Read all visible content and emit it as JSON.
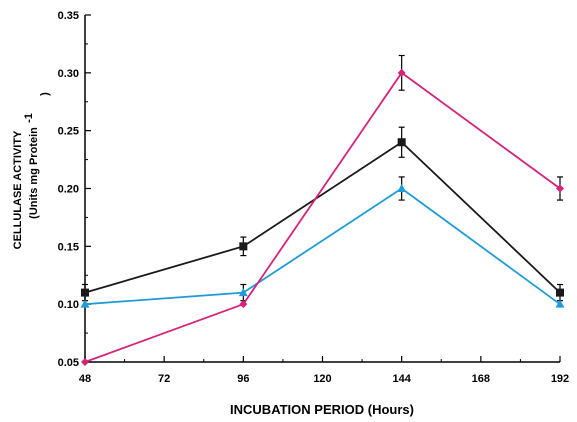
{
  "chart_data": {
    "type": "line",
    "xlabel": "INCUBATION PERIOD (Hours)",
    "ylabel_lines": [
      "CELLULASE ACTIVITY",
      "(Units mg Protein"
    ],
    "ylabel_superscript": "-1",
    "ylabel_close": ")",
    "x_ticks": [
      48,
      72,
      96,
      120,
      144,
      168,
      192
    ],
    "x_tick_labels": [
      "48",
      "72",
      "96",
      "120",
      "144",
      "168",
      "192"
    ],
    "xlim": [
      48,
      192
    ],
    "y_ticks": [
      0.05,
      0.1,
      0.15,
      0.2,
      0.25,
      0.3,
      0.35
    ],
    "y_tick_labels": [
      "0.05",
      "0.10",
      "0.15",
      "0.20",
      "0.25",
      "0.30",
      "0.35"
    ],
    "ylim": [
      0.05,
      0.35
    ],
    "x": [
      48,
      96,
      144,
      192
    ],
    "series": [
      {
        "color": "#1a1a1a",
        "marker": "square",
        "values": [
          0.11,
          0.15,
          0.24,
          0.11
        ],
        "errors": [
          0.007,
          0.008,
          0.013,
          0.007
        ]
      },
      {
        "color": "#1e9cd7",
        "marker": "triangle",
        "values": [
          0.1,
          0.11,
          0.2,
          0.1
        ],
        "errors": [
          0.0,
          0.007,
          0.01,
          0.0
        ]
      },
      {
        "color": "#d6237a",
        "marker": "diamond",
        "values": [
          0.05,
          0.1,
          0.3,
          0.2
        ],
        "errors": [
          0.0,
          0.0,
          0.015,
          0.01
        ]
      }
    ]
  }
}
